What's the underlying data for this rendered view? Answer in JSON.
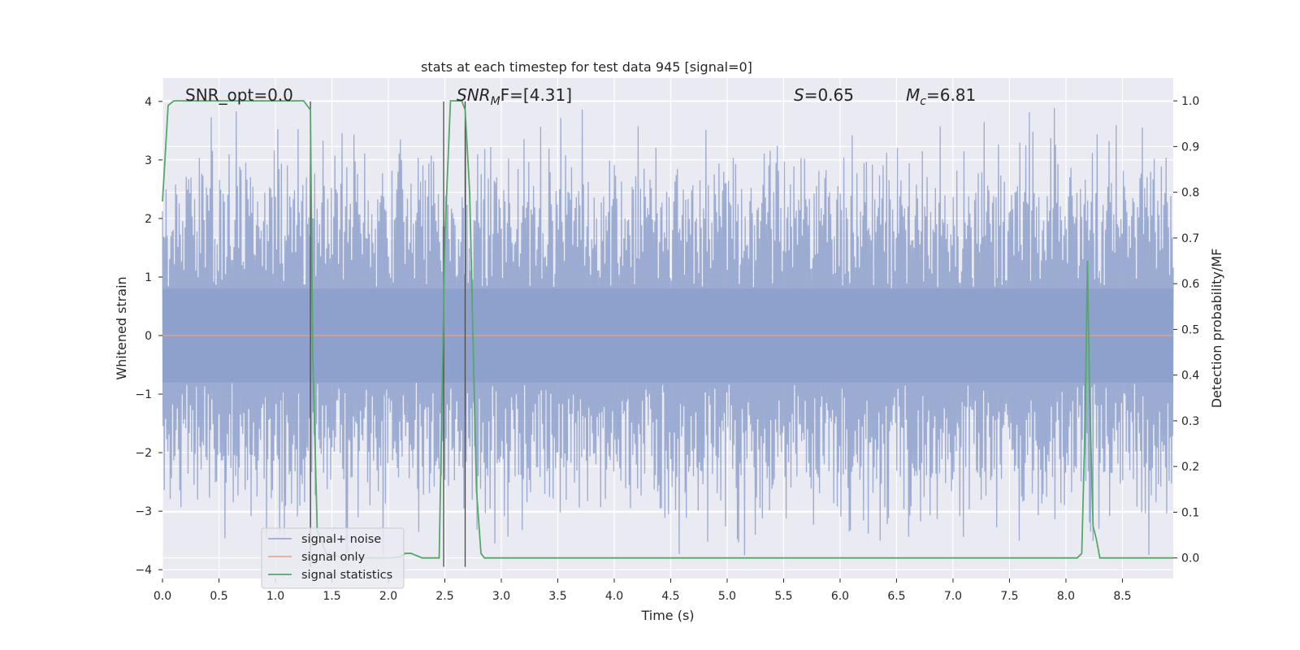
{
  "chart_data": {
    "type": "line",
    "title": "stats at each timestep for test data 945 [signal=0]",
    "xlabel": "Time (s)",
    "ylabel": "Whitened strain",
    "y2label": "Detection probability/MF",
    "xlim": [
      0.0,
      8.95
    ],
    "ylim": [
      -4.15,
      4.4
    ],
    "y2lim": [
      -0.045,
      1.05
    ],
    "xticks": [
      "0.0",
      "0.5",
      "1.0",
      "1.5",
      "2.0",
      "2.5",
      "3.0",
      "3.5",
      "4.0",
      "4.5",
      "5.0",
      "5.5",
      "6.0",
      "6.5",
      "7.0",
      "7.5",
      "8.0",
      "8.5"
    ],
    "yticks": [
      "4",
      "3",
      "2",
      "1",
      "0",
      "−1",
      "−2",
      "−3",
      "−4"
    ],
    "y2ticks": [
      "1.0",
      "0.9",
      "0.8",
      "0.7",
      "0.6",
      "0.5",
      "0.4",
      "0.3",
      "0.2",
      "0.1",
      "0.0"
    ],
    "grid": true,
    "legend_placement": "lower-left",
    "annotations": {
      "snr_opt": "SNR_opt=0.0",
      "snr_mf_main": "SNR",
      "snr_mf_sub": "M",
      "snr_mf_rest": "F=[4.31]",
      "s_main": "S",
      "s_rest": "=0.65",
      "mc_main": "M",
      "mc_sub": "c",
      "mc_rest": "=6.81"
    },
    "vlines_x": [
      1.31,
      2.49,
      2.68
    ],
    "series": [
      {
        "name": "signal+ noise",
        "color": "#8da0cb",
        "description_values": {
          "typical_abs_range": [
            0.8,
            4.0
          ],
          "approx_peak": 4.0,
          "approx_trough": -3.9
        }
      },
      {
        "name": "signal only",
        "color": "#e8a07e",
        "values_constant": 0.0
      },
      {
        "name": "signal statistics",
        "color": "#55a868",
        "x": [
          0.0,
          0.05,
          0.1,
          0.5,
          1.0,
          1.25,
          1.31,
          1.33,
          1.37,
          1.45,
          1.6,
          2.0,
          2.1,
          2.15,
          2.2,
          2.25,
          2.3,
          2.35,
          2.45,
          2.5,
          2.55,
          2.6,
          2.65,
          2.68,
          2.72,
          2.78,
          2.82,
          2.85,
          2.9,
          3.5,
          5.0,
          8.1,
          8.14,
          8.17,
          8.19,
          8.21,
          8.24,
          8.27,
          8.3,
          8.35,
          8.95
        ],
        "values": [
          0.78,
          0.99,
          1.0,
          1.0,
          1.0,
          1.0,
          0.98,
          0.45,
          0.06,
          0.01,
          0.0,
          0.0,
          0.002,
          0.01,
          0.01,
          0.005,
          0.0,
          0.0,
          0.0,
          0.7,
          1.0,
          1.0,
          1.0,
          0.98,
          0.8,
          0.15,
          0.01,
          0.0,
          0.0,
          0.0,
          0.0,
          0.0,
          0.01,
          0.3,
          0.65,
          0.35,
          0.07,
          0.04,
          0.0,
          0.0,
          0.0
        ]
      }
    ]
  }
}
